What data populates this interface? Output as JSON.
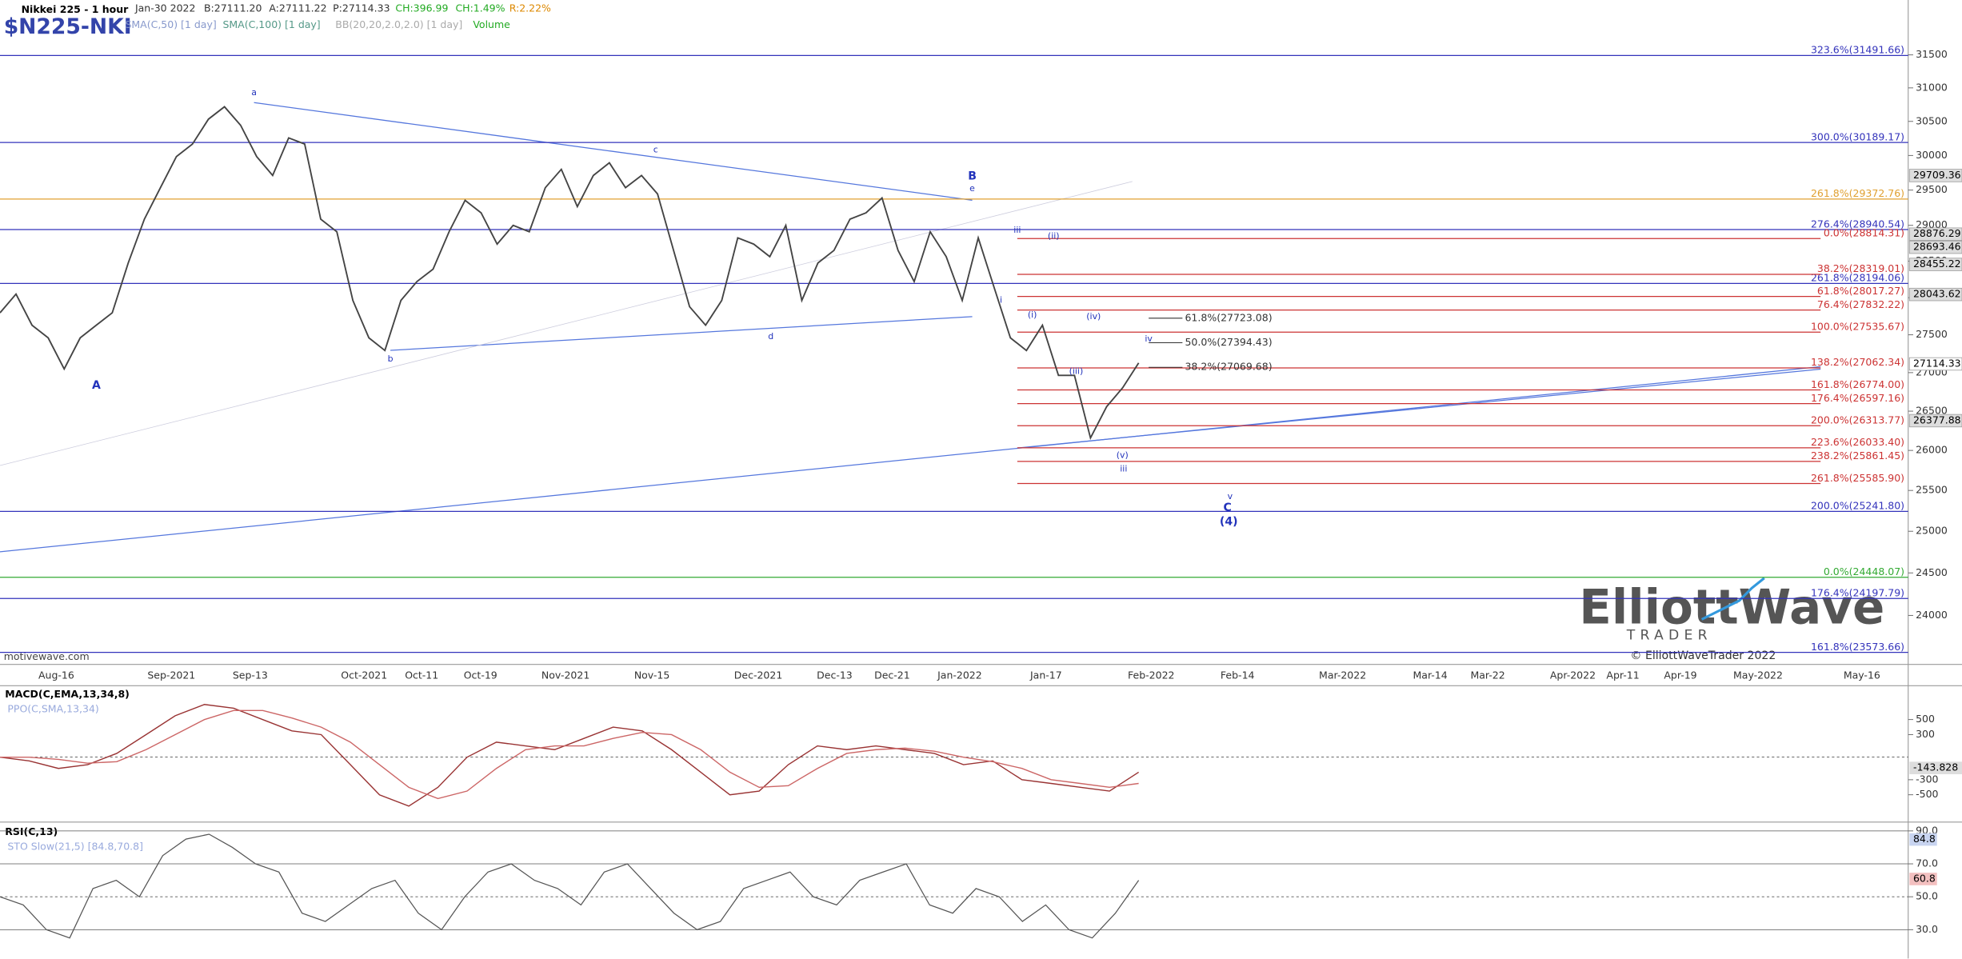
{
  "chart_data": {
    "type": "line",
    "log_scale": true,
    "header": {
      "title": "Nikkei 225 - 1 hour",
      "date": "Jan-30 2022",
      "bid": "B:27111.20",
      "ask": "A:27111.22",
      "price": "P:27114.33",
      "change": "CH:396.99",
      "change_pct": "CH:1.49%",
      "range": "R:2.22%",
      "symbol": "$N225-NKI",
      "indicators": [
        "SMA(C,50) [1 day]",
        "SMA(C,100) [1 day]",
        "BB(20,20,2.0,2.0) [1 day]",
        "Volume"
      ]
    },
    "watermark": "motivewave.com",
    "copyright": "© ElliottWaveTrader 2022",
    "logo": "ElliottWave",
    "logo_sub": "TRADER",
    "ylim": [
      23450,
      32350
    ],
    "yticks": [
      24000,
      24500,
      25000,
      25500,
      26000,
      26500,
      27000,
      27500,
      28000,
      28500,
      29000,
      29500,
      30000,
      30500,
      31000,
      31500
    ],
    "x_labels": [
      "Aug-16",
      "Sep-2021",
      "Sep-13",
      "Oct-2021",
      "Oct-11",
      "Oct-19",
      "Nov-2021",
      "Nov-15",
      "Dec-2021",
      "Dec-13",
      "Dec-21",
      "Jan-2022",
      "Jan-17",
      "Feb-2022",
      "Feb-14",
      "Mar-2022",
      "Mar-14",
      "Mar-22",
      "Apr-2022",
      "Apr-11",
      "Apr-19",
      "May-2022",
      "May-16"
    ],
    "series": [
      {
        "name": "Nikkei 225",
        "color": "#444444",
        "values": [
          27794,
          28049,
          27628,
          27460,
          27048,
          27460,
          27628,
          27794,
          28477,
          29087,
          29534,
          29984,
          30166,
          30534,
          30718,
          30442,
          29984,
          29710,
          30256,
          30166,
          29087,
          28910,
          27962,
          27460,
          27292,
          27962,
          28219,
          28390,
          28910,
          29354,
          29177,
          28737,
          29000,
          28910,
          29534,
          29800,
          29264,
          29710,
          29893,
          29534,
          29710,
          29444,
          28650,
          27878,
          27628,
          27962,
          28824,
          28737,
          28563,
          29000,
          27962,
          28477,
          28650,
          29087,
          29177,
          29388,
          28650,
          28219,
          28910,
          28563,
          27962,
          28824,
          28133,
          27460,
          27292,
          27628,
          26964,
          26964,
          26158,
          26558,
          26803,
          27128
        ]
      }
    ],
    "fib_full": [
      {
        "label": "323.6%(31491.66)",
        "value": 31491.66,
        "color": "#3333bb"
      },
      {
        "label": "300.0%(30189.17)",
        "value": 30189.17,
        "color": "#3333bb"
      },
      {
        "label": "261.8%(29372.76)",
        "value": 29372.76,
        "color": "#e0a030"
      },
      {
        "label": "276.4%(28940.54)",
        "value": 28940.54,
        "color": "#3333bb"
      },
      {
        "label": "261.8%(28194.06)",
        "value": 28194.06,
        "color": "#3333bb"
      },
      {
        "label": "200.0%(25241.80)",
        "value": 25241.8,
        "color": "#3333bb"
      },
      {
        "label": "0.0%(24448.07)",
        "value": 24448.07,
        "color": "#33aa33"
      },
      {
        "label": "176.4%(24197.79)",
        "value": 24197.79,
        "color": "#3333bb"
      },
      {
        "label": "161.8%(23573.66)",
        "value": 23573.66,
        "color": "#3333bb"
      }
    ],
    "fib_right": [
      {
        "label": "0.0%(28814.31)",
        "value": 28814.31
      },
      {
        "label": "38.2%(28319.01)",
        "value": 28319.01
      },
      {
        "label": "61.8%(28017.27)",
        "value": 28017.27
      },
      {
        "label": "76.4%(27832.22)",
        "value": 27832.22
      },
      {
        "label": "100.0%(27535.67)",
        "value": 27535.67
      },
      {
        "label": "138.2%(27062.34)",
        "value": 27062.34
      },
      {
        "label": "161.8%(26774.00)",
        "value": 26774.0
      },
      {
        "label": "176.4%(26597.16)",
        "value": 26597.16
      },
      {
        "label": "200.0%(26313.77)",
        "value": 26313.77
      },
      {
        "label": "223.6%(26033.40)",
        "value": 26033.4
      },
      {
        "label": "238.2%(25861.45)",
        "value": 25861.45
      },
      {
        "label": "261.8%(25585.90)",
        "value": 25585.9
      }
    ],
    "fib_right_color": "#cc3333",
    "retrace": [
      {
        "label": "61.8%(27723.08)",
        "value": 27723.08
      },
      {
        "label": "50.0%(27394.43)",
        "value": 27394.43
      },
      {
        "label": "38.2%(27069.68)",
        "value": 27069.68
      }
    ],
    "price_markers": [
      29709.36,
      28876.29,
      28693.46,
      28455.22,
      28043.62,
      27114.33,
      26377.88
    ],
    "waves": [
      "A",
      "a",
      "b",
      "c",
      "d",
      "e",
      "B",
      "i",
      "(i)",
      "iii",
      "(ii)",
      "(iii)",
      "(iv)",
      "iv",
      "(v)",
      "iii",
      "v",
      "C",
      "(4)"
    ],
    "macd": {
      "label": "MACD(C,EMA,13,34,8)",
      "label2": "PPO(C,SMA,13,34)",
      "ylim": [
        -830,
        950
      ],
      "yticks": [
        500,
        300,
        -300,
        -500
      ],
      "current": -143.828,
      "current_label": "-143.828",
      "series": [
        {
          "name": "MACD",
          "color": "#993333",
          "values": [
            0,
            -50,
            -150,
            -100,
            50,
            300,
            550,
            700,
            650,
            500,
            350,
            300,
            -100,
            -500,
            -650,
            -400,
            0,
            200,
            150,
            100,
            250,
            400,
            350,
            100,
            -200,
            -500,
            -450,
            -100,
            150,
            100,
            150,
            100,
            50,
            -100,
            -50,
            -300,
            -350,
            -400,
            -450,
            -200
          ]
        },
        {
          "name": "Signal",
          "color": "#cc6666",
          "values": [
            0,
            0,
            -30,
            -80,
            -60,
            100,
            300,
            500,
            620,
            620,
            520,
            400,
            200,
            -100,
            -400,
            -550,
            -450,
            -150,
            100,
            150,
            150,
            250,
            330,
            300,
            100,
            -200,
            -400,
            -380,
            -150,
            50,
            100,
            120,
            80,
            0,
            -60,
            -150,
            -300,
            -350,
            -400,
            -350
          ]
        }
      ]
    },
    "rsi": {
      "label": "RSI(C,13)",
      "label2": "STO Slow(21,5) [84.8,70.8]",
      "ylim": [
        12.5,
        94.6
      ],
      "yticks": [
        {
          "value": 90,
          "label": "90.0"
        },
        {
          "value": 70,
          "label": "70.0"
        },
        {
          "value": 50,
          "label": "50.0"
        },
        {
          "value": 30,
          "label": "30.0"
        }
      ],
      "markers": [
        84.8,
        60.8
      ],
      "values": [
        50,
        45,
        30,
        25,
        55,
        60,
        50,
        75,
        85,
        88,
        80,
        70,
        65,
        40,
        35,
        45,
        55,
        60,
        40,
        30,
        50,
        65,
        70,
        60,
        55,
        45,
        65,
        70,
        55,
        40,
        30,
        35,
        55,
        60,
        65,
        50,
        45,
        60,
        65,
        70,
        45,
        40,
        55,
        50,
        35,
        45,
        30,
        25,
        40,
        60
      ]
    }
  }
}
